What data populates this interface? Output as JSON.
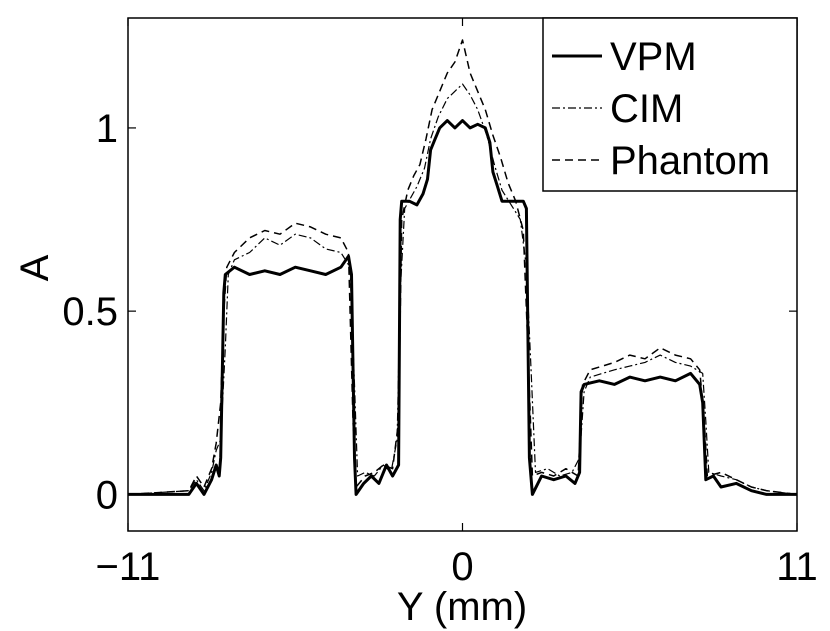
{
  "chart_data": {
    "type": "line",
    "title": "",
    "xlabel": "Y (mm)",
    "ylabel": "A",
    "xlim": [
      -11,
      11
    ],
    "ylim": [
      -0.1,
      1.3
    ],
    "xticks": [
      -11,
      0,
      11
    ],
    "xtick_labels": [
      "−11",
      "0",
      "11"
    ],
    "yticks": [
      0,
      0.5,
      1
    ],
    "ytick_labels": [
      "0",
      "0.5",
      "1"
    ],
    "grid": false,
    "legend_position": "top-right",
    "series": [
      {
        "name": "VPM",
        "style": "solid",
        "color": "#000000",
        "points": [
          [
            -11,
            0
          ],
          [
            -9,
            0
          ],
          [
            -8.75,
            0.03
          ],
          [
            -8.5,
            0.0
          ],
          [
            -8.25,
            0.04
          ],
          [
            -8.1,
            0.08
          ],
          [
            -8,
            0.05
          ],
          [
            -7.95,
            0.1
          ],
          [
            -7.85,
            0.55
          ],
          [
            -7.8,
            0.6
          ],
          [
            -7.5,
            0.62
          ],
          [
            -7,
            0.6
          ],
          [
            -6.5,
            0.61
          ],
          [
            -6,
            0.6
          ],
          [
            -5.5,
            0.62
          ],
          [
            -5,
            0.61
          ],
          [
            -4.5,
            0.6
          ],
          [
            -4,
            0.62
          ],
          [
            -3.75,
            0.65
          ],
          [
            -3.65,
            0.6
          ],
          [
            -3.55,
            0.1
          ],
          [
            -3.5,
            0.0
          ],
          [
            -3.25,
            0.03
          ],
          [
            -3,
            0.05
          ],
          [
            -2.75,
            0.03
          ],
          [
            -2.5,
            0.08
          ],
          [
            -2.3,
            0.05
          ],
          [
            -2.1,
            0.08
          ],
          [
            -2.05,
            0.75
          ],
          [
            -2,
            0.8
          ],
          [
            -1.75,
            0.8
          ],
          [
            -1.5,
            0.79
          ],
          [
            -1.3,
            0.82
          ],
          [
            -1.15,
            0.86
          ],
          [
            -1.05,
            0.94
          ],
          [
            -0.9,
            0.97
          ],
          [
            -0.75,
            1.0
          ],
          [
            -0.5,
            1.02
          ],
          [
            -0.25,
            1.0
          ],
          [
            0,
            1.02
          ],
          [
            0.25,
            1.0
          ],
          [
            0.5,
            1.01
          ],
          [
            0.75,
            1.0
          ],
          [
            0.9,
            0.96
          ],
          [
            1,
            0.88
          ],
          [
            1.15,
            0.84
          ],
          [
            1.3,
            0.8
          ],
          [
            1.5,
            0.8
          ],
          [
            1.75,
            0.8
          ],
          [
            2,
            0.8
          ],
          [
            2.1,
            0.78
          ],
          [
            2.2,
            0.1
          ],
          [
            2.3,
            0.0
          ],
          [
            2.6,
            0.05
          ],
          [
            3,
            0.04
          ],
          [
            3.4,
            0.05
          ],
          [
            3.7,
            0.03
          ],
          [
            3.85,
            0.06
          ],
          [
            3.9,
            0.28
          ],
          [
            4,
            0.3
          ],
          [
            4.5,
            0.31
          ],
          [
            5,
            0.3
          ],
          [
            5.5,
            0.32
          ],
          [
            6,
            0.31
          ],
          [
            6.5,
            0.32
          ],
          [
            7,
            0.31
          ],
          [
            7.5,
            0.33
          ],
          [
            7.8,
            0.3
          ],
          [
            7.9,
            0.25
          ],
          [
            8,
            0.04
          ],
          [
            8.25,
            0.05
          ],
          [
            8.5,
            0.02
          ],
          [
            9,
            0.03
          ],
          [
            9.5,
            0.01
          ],
          [
            10,
            0
          ],
          [
            11,
            0
          ]
        ]
      },
      {
        "name": "CIM",
        "style": "dash-dot",
        "color": "#000000",
        "points": [
          [
            -11,
            0
          ],
          [
            -9,
            0.01
          ],
          [
            -8.75,
            0.04
          ],
          [
            -8.5,
            0.01
          ],
          [
            -8.25,
            0.06
          ],
          [
            -8.1,
            0.12
          ],
          [
            -7.95,
            0.15
          ],
          [
            -7.8,
            0.4
          ],
          [
            -7.7,
            0.6
          ],
          [
            -7.5,
            0.64
          ],
          [
            -7,
            0.66
          ],
          [
            -6.5,
            0.7
          ],
          [
            -6,
            0.68
          ],
          [
            -5.5,
            0.71
          ],
          [
            -5,
            0.7
          ],
          [
            -4.5,
            0.67
          ],
          [
            -4,
            0.66
          ],
          [
            -3.7,
            0.62
          ],
          [
            -3.55,
            0.3
          ],
          [
            -3.45,
            0.05
          ],
          [
            -3.2,
            0.06
          ],
          [
            -2.9,
            0.05
          ],
          [
            -2.6,
            0.08
          ],
          [
            -2.35,
            0.06
          ],
          [
            -2.15,
            0.15
          ],
          [
            -2.05,
            0.55
          ],
          [
            -1.9,
            0.78
          ],
          [
            -1.7,
            0.81
          ],
          [
            -1.5,
            0.84
          ],
          [
            -1.25,
            0.89
          ],
          [
            -1.05,
            0.97
          ],
          [
            -0.8,
            1.03
          ],
          [
            -0.5,
            1.08
          ],
          [
            -0.25,
            1.1
          ],
          [
            0,
            1.12
          ],
          [
            0.25,
            1.09
          ],
          [
            0.5,
            1.05
          ],
          [
            0.8,
            0.98
          ],
          [
            1.05,
            0.9
          ],
          [
            1.3,
            0.83
          ],
          [
            1.6,
            0.79
          ],
          [
            1.9,
            0.75
          ],
          [
            2.1,
            0.62
          ],
          [
            2.25,
            0.35
          ],
          [
            2.4,
            0.06
          ],
          [
            2.8,
            0.07
          ],
          [
            3.2,
            0.05
          ],
          [
            3.6,
            0.06
          ],
          [
            3.85,
            0.1
          ],
          [
            4,
            0.28
          ],
          [
            4.2,
            0.32
          ],
          [
            4.6,
            0.33
          ],
          [
            5,
            0.34
          ],
          [
            5.5,
            0.35
          ],
          [
            6,
            0.36
          ],
          [
            6.5,
            0.38
          ],
          [
            7,
            0.36
          ],
          [
            7.5,
            0.35
          ],
          [
            7.9,
            0.33
          ],
          [
            8,
            0.2
          ],
          [
            8.1,
            0.06
          ],
          [
            8.5,
            0.05
          ],
          [
            9,
            0.04
          ],
          [
            9.5,
            0.02
          ],
          [
            10,
            0.01
          ],
          [
            11,
            0
          ]
        ]
      },
      {
        "name": "Phantom",
        "style": "dashed",
        "color": "#000000",
        "points": [
          [
            -11,
            0
          ],
          [
            -9,
            0.01
          ],
          [
            -8.75,
            0.05
          ],
          [
            -8.5,
            0.02
          ],
          [
            -8.25,
            0.07
          ],
          [
            -8.1,
            0.14
          ],
          [
            -7.95,
            0.25
          ],
          [
            -7.85,
            0.5
          ],
          [
            -7.75,
            0.62
          ],
          [
            -7.5,
            0.66
          ],
          [
            -7,
            0.7
          ],
          [
            -6.5,
            0.72
          ],
          [
            -6,
            0.71
          ],
          [
            -5.5,
            0.74
          ],
          [
            -5,
            0.73
          ],
          [
            -4.5,
            0.71
          ],
          [
            -4,
            0.7
          ],
          [
            -3.75,
            0.66
          ],
          [
            -3.6,
            0.2
          ],
          [
            -3.5,
            0.02
          ],
          [
            -3.2,
            0.05
          ],
          [
            -2.9,
            0.06
          ],
          [
            -2.6,
            0.08
          ],
          [
            -2.3,
            0.07
          ],
          [
            -2.1,
            0.2
          ],
          [
            -2,
            0.75
          ],
          [
            -1.8,
            0.83
          ],
          [
            -1.6,
            0.87
          ],
          [
            -1.4,
            0.9
          ],
          [
            -1.2,
            0.97
          ],
          [
            -1,
            1.05
          ],
          [
            -0.75,
            1.1
          ],
          [
            -0.5,
            1.15
          ],
          [
            -0.25,
            1.18
          ],
          [
            0,
            1.24
          ],
          [
            0.25,
            1.15
          ],
          [
            0.5,
            1.1
          ],
          [
            0.75,
            1.05
          ],
          [
            1,
            0.98
          ],
          [
            1.25,
            0.92
          ],
          [
            1.5,
            0.85
          ],
          [
            1.75,
            0.8
          ],
          [
            2,
            0.72
          ],
          [
            2.15,
            0.4
          ],
          [
            2.3,
            0.05
          ],
          [
            2.6,
            0.06
          ],
          [
            3,
            0.05
          ],
          [
            3.4,
            0.07
          ],
          [
            3.8,
            0.05
          ],
          [
            3.95,
            0.3
          ],
          [
            4.2,
            0.34
          ],
          [
            4.6,
            0.35
          ],
          [
            5,
            0.36
          ],
          [
            5.5,
            0.38
          ],
          [
            6,
            0.37
          ],
          [
            6.5,
            0.4
          ],
          [
            7,
            0.38
          ],
          [
            7.5,
            0.37
          ],
          [
            7.8,
            0.34
          ],
          [
            7.95,
            0.2
          ],
          [
            8.05,
            0.05
          ],
          [
            8.5,
            0.06
          ],
          [
            9,
            0.04
          ],
          [
            9.5,
            0.02
          ],
          [
            10,
            0.01
          ],
          [
            11,
            0
          ]
        ]
      }
    ]
  }
}
